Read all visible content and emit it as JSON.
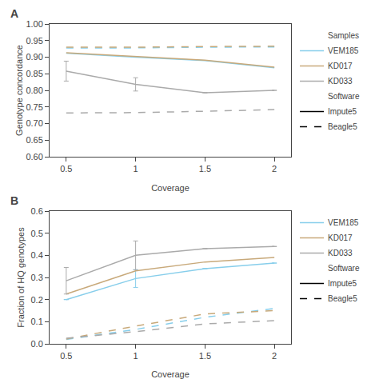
{
  "chart_data": [
    {
      "type": "line",
      "annotations": [
        "A"
      ],
      "xlabel": "Coverage",
      "ylabel": "Genotype concordance",
      "x": [
        0.5,
        1.0,
        1.5,
        2.0
      ],
      "xlim": [
        0.38,
        2.12
      ],
      "xticks": [
        0.5,
        1,
        1.5,
        2
      ],
      "ylim": [
        0.6,
        1.0
      ],
      "yticks": [
        {
          "value": 0.6,
          "label": "0.60"
        },
        0.65,
        {
          "value": 0.7,
          "label": "0.70"
        },
        0.75,
        {
          "value": 0.8,
          "label": "0.80"
        },
        0.85,
        {
          "value": 0.9,
          "label": "0.90"
        },
        0.95,
        {
          "value": 1.0,
          "label": "1.00"
        }
      ],
      "grid": false,
      "legend": "right",
      "legend_entries": [
        {
          "label": "Samples"
        },
        {
          "label": "VEM185",
          "color": "#87CEEB",
          "line_style": "solid"
        },
        {
          "label": "KD017",
          "color": "#C8A97A",
          "line_style": "solid"
        },
        {
          "label": "KD033",
          "color": "#AAAAAA",
          "line_style": "solid"
        },
        {
          "label": "Software"
        },
        {
          "label": "Impute5",
          "color": "black",
          "line_style": "solid"
        },
        {
          "label": "Beagle5",
          "color": "black",
          "line_style": "dashed"
        }
      ],
      "series": [
        {
          "color": "#87CEEB",
          "line_style": "solid",
          "values": [
            0.912,
            0.9,
            0.89,
            0.868
          ]
        },
        {
          "color": "#C8A97A",
          "line_style": "solid",
          "values": [
            0.913,
            0.902,
            0.891,
            0.87
          ]
        },
        {
          "color": "#AAAAAA",
          "line_style": "solid",
          "values": [
            0.858,
            0.818,
            0.793,
            0.8
          ],
          "error": [
            0.03,
            0.02,
            null,
            null
          ]
        },
        {
          "color": "#87CEEB",
          "line_style": "dashed",
          "values": [
            0.928,
            0.928,
            0.93,
            0.931
          ]
        },
        {
          "color": "#C8A97A",
          "line_style": "dashed",
          "values": [
            0.93,
            0.93,
            0.932,
            0.933
          ]
        },
        {
          "color": "#AAAAAA",
          "line_style": "dashed",
          "values": [
            0.732,
            0.733,
            0.737,
            0.742
          ]
        }
      ]
    },
    {
      "type": "line",
      "annotations": [
        "B"
      ],
      "xlabel": "Coverage",
      "ylabel": "Fraction of HQ genotypes",
      "x": [
        0.5,
        1.0,
        1.5,
        2.0
      ],
      "xlim": [
        0.38,
        2.12
      ],
      "xticks": [
        0.5,
        1,
        1.5,
        2
      ],
      "ylim": [
        0.0,
        0.6
      ],
      "yticks": [
        {
          "value": 0.0,
          "label": "0.0"
        },
        0.1,
        0.2,
        0.3,
        0.4,
        0.5,
        0.6
      ],
      "grid": false,
      "legend": "right",
      "legend_entries": [
        {
          "label": "VEM185",
          "color": "#87CEEB",
          "line_style": "solid"
        },
        {
          "label": "KD017",
          "color": "#C8A97A",
          "line_style": "solid"
        },
        {
          "label": "KD033",
          "color": "#AAAAAA",
          "line_style": "solid"
        },
        {
          "label": "Software"
        },
        {
          "label": "Impute5",
          "color": "black",
          "line_style": "solid"
        },
        {
          "label": "Beagle5",
          "color": "black",
          "line_style": "dashed"
        }
      ],
      "series": [
        {
          "color": "#87CEEB",
          "line_style": "solid",
          "values": [
            0.2,
            0.295,
            0.34,
            0.365
          ],
          "error": [
            null,
            0.04,
            null,
            null
          ]
        },
        {
          "color": "#C8A97A",
          "line_style": "solid",
          "values": [
            0.225,
            0.33,
            0.37,
            0.39
          ]
        },
        {
          "color": "#AAAAAA",
          "line_style": "solid",
          "values": [
            0.285,
            0.4,
            0.43,
            0.44
          ],
          "error": [
            0.06,
            0.065,
            null,
            null
          ]
        },
        {
          "color": "#87CEEB",
          "line_style": "dashed",
          "values": [
            0.02,
            0.065,
            0.12,
            0.16
          ]
        },
        {
          "color": "#C8A97A",
          "line_style": "dashed",
          "values": [
            0.022,
            0.08,
            0.135,
            0.15
          ]
        },
        {
          "color": "#AAAAAA",
          "line_style": "dashed",
          "values": [
            0.025,
            0.055,
            0.09,
            0.105
          ]
        }
      ]
    }
  ]
}
